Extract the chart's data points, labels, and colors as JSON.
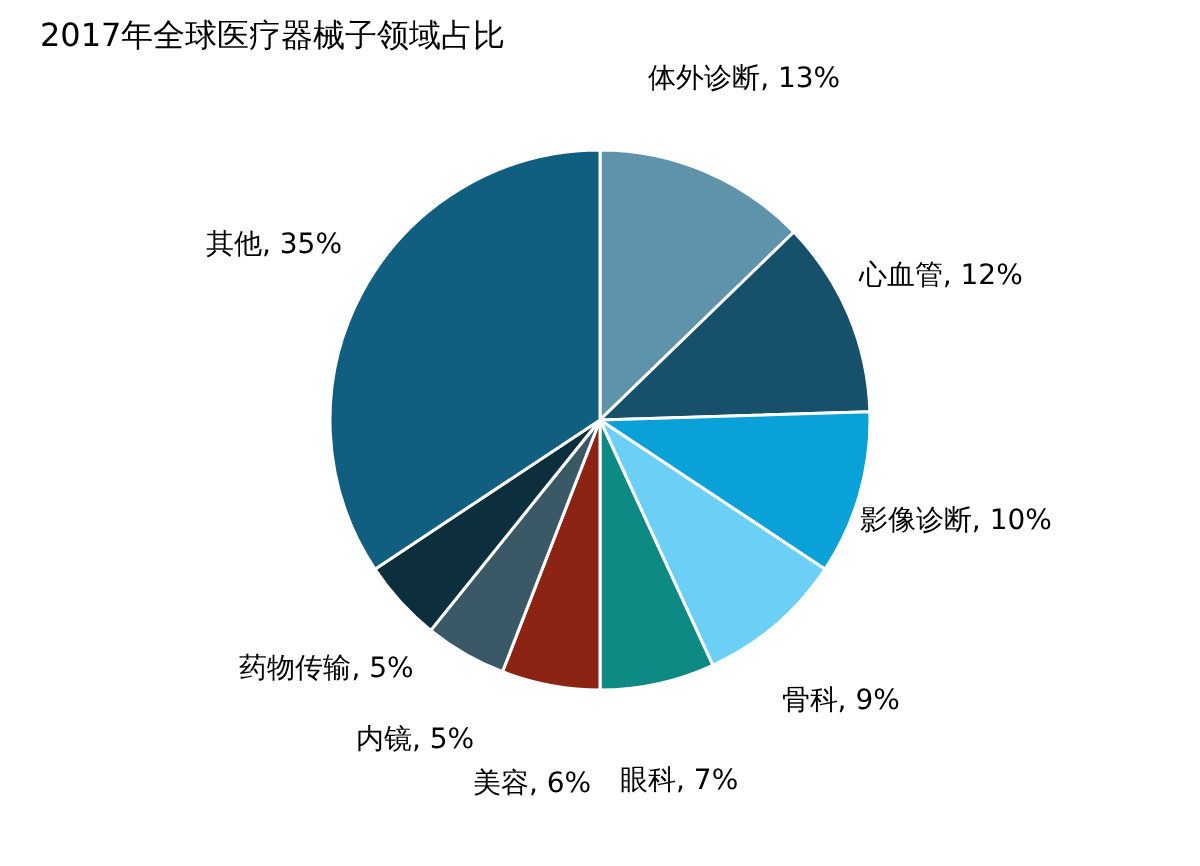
{
  "chart_data": {
    "type": "pie",
    "title": "2017年全球医疗器械子领域占比",
    "categories": [
      "体外诊断",
      "心血管",
      "影像诊断",
      "骨科",
      "眼科",
      "美容",
      "内镜",
      "药物传输",
      "其他"
    ],
    "values": [
      13,
      12,
      10,
      9,
      7,
      6,
      5,
      5,
      35
    ],
    "colors": [
      "#5e93ab",
      "#17506b",
      "#0aa0d8",
      "#6ccff6",
      "#0e8a84",
      "#8b2412",
      "#3b5866",
      "#0d2f3d",
      "#115f80"
    ],
    "value_labels": [
      "13%",
      "12%",
      "10%",
      "9%",
      "7%",
      "6%",
      "5%",
      "5%",
      "35%"
    ],
    "legend": false
  }
}
